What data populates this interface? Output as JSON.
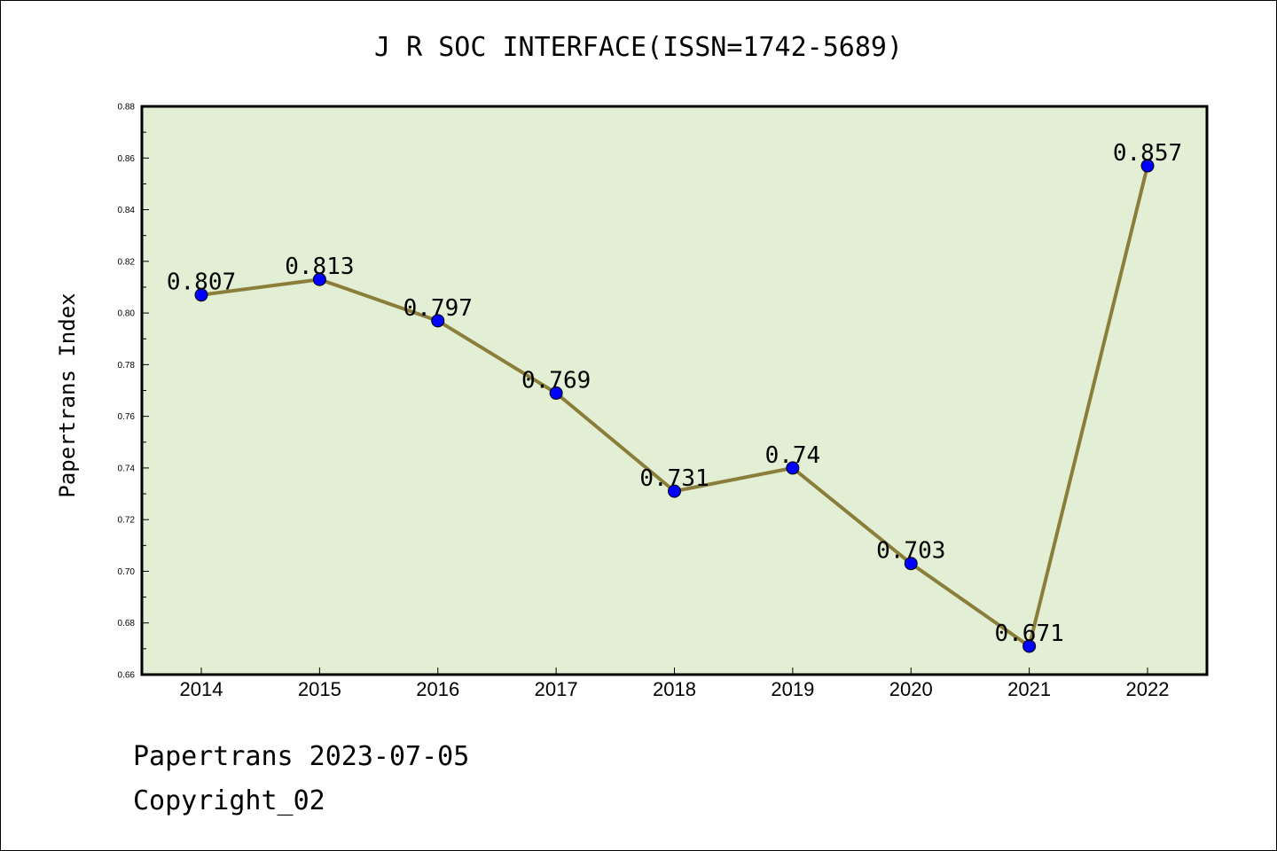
{
  "chart_data": {
    "type": "line",
    "title": "J R SOC INTERFACE(ISSN=1742-5689)",
    "xlabel": "",
    "ylabel": "Papertrans Index",
    "categories": [
      "2014",
      "2015",
      "2016",
      "2017",
      "2018",
      "2019",
      "2020",
      "2021",
      "2022"
    ],
    "series": [
      {
        "values": [
          0.807,
          0.813,
          0.797,
          0.769,
          0.731,
          0.74,
          0.703,
          0.671,
          0.857
        ],
        "data_labels": [
          "0.807",
          "0.813",
          "0.797",
          "0.769",
          "0.731",
          "0.74",
          "0.703",
          "0.671",
          "0.857"
        ]
      }
    ],
    "ylim": [
      0.66,
      0.88
    ],
    "yticks": [
      "0.66",
      "0.68",
      "0.70",
      "0.72",
      "0.74",
      "0.76",
      "0.78",
      "0.80",
      "0.82",
      "0.84",
      "0.86",
      "0.88"
    ],
    "grid": false,
    "colors": {
      "line": "#8b7d3a",
      "marker": "#0000ff",
      "plot_bg": "#e2efd5"
    }
  },
  "footer": {
    "line1": "Papertrans 2023-07-05",
    "line2": "Copyright_02"
  }
}
